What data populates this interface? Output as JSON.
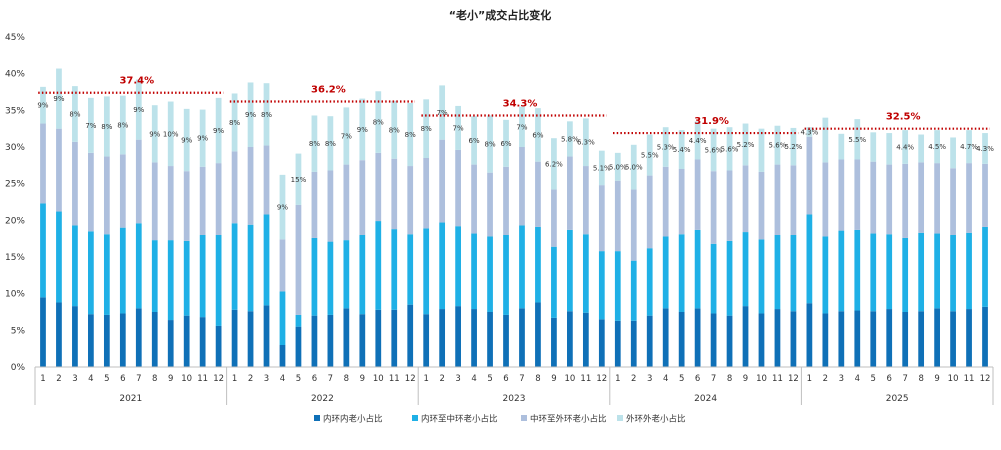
{
  "chart_data": {
    "type": "bar",
    "stacked": true,
    "title": "“老小”成交占比变化",
    "ylim": [
      0,
      45
    ],
    "yticks": [
      0,
      5,
      10,
      15,
      20,
      25,
      30,
      35,
      40,
      45
    ],
    "ytick_labels": [
      "0%",
      "5%",
      "10%",
      "15%",
      "20%",
      "25%",
      "30%",
      "35%",
      "40%",
      "45%"
    ],
    "years": [
      "2021",
      "2022",
      "2023",
      "2024",
      "2025"
    ],
    "month_labels": [
      "1",
      "2",
      "3",
      "4",
      "5",
      "6",
      "7",
      "8",
      "9",
      "10",
      "11",
      "12"
    ],
    "colors": [
      "#0F70B7",
      "#1FB0E6",
      "#ADBFDD",
      "#BCE2EA"
    ],
    "series": [
      {
        "name": "内环内老小占比",
        "values": [
          9.5,
          8.8,
          8.3,
          7.2,
          7.1,
          7.3,
          8.0,
          7.5,
          6.4,
          7.0,
          6.8,
          5.6,
          7.8,
          7.6,
          8.4,
          3.0,
          5.5,
          7.0,
          7.1,
          8.0,
          7.2,
          7.8,
          7.8,
          8.5,
          7.2,
          7.9,
          8.3,
          7.9,
          7.5,
          7.1,
          8.0,
          8.8,
          6.7,
          7.6,
          7.4,
          6.5,
          6.3,
          6.3,
          7.0,
          8.0,
          7.5,
          8.0,
          7.3,
          7.0,
          8.3,
          7.3,
          7.9,
          7.6,
          8.7,
          7.3,
          7.6,
          7.7,
          7.6,
          7.9,
          7.5,
          7.6,
          8.0,
          7.6,
          7.9,
          8.2
        ]
      },
      {
        "name": "内环至中环老小占比",
        "values": [
          12.8,
          12.4,
          11.0,
          11.3,
          11.0,
          11.7,
          11.6,
          9.8,
          10.9,
          10.2,
          11.2,
          12.4,
          11.8,
          11.8,
          12.4,
          7.3,
          1.6,
          10.6,
          10.0,
          9.3,
          10.8,
          12.1,
          11.0,
          9.6,
          11.7,
          11.8,
          10.9,
          10.3,
          10.3,
          10.9,
          11.3,
          10.3,
          9.7,
          11.1,
          10.7,
          9.3,
          9.5,
          8.2,
          9.2,
          9.8,
          10.6,
          10.7,
          9.5,
          10.2,
          10.1,
          10.1,
          10.1,
          10.4,
          12.1,
          10.5,
          11.0,
          11.0,
          10.6,
          10.2,
          10.1,
          10.7,
          10.2,
          10.4,
          10.4,
          10.9
        ]
      },
      {
        "name": "中环至外环老小占比",
        "values": [
          10.9,
          11.3,
          11.4,
          10.7,
          10.6,
          10.0,
          11.4,
          10.6,
          10.1,
          9.5,
          9.3,
          9.8,
          9.8,
          10.6,
          9.4,
          7.1,
          15.0,
          9.0,
          9.7,
          10.3,
          10.2,
          9.3,
          9.6,
          9.3,
          9.6,
          11.3,
          10.4,
          9.4,
          8.7,
          9.3,
          10.7,
          8.9,
          7.8,
          10.0,
          9.3,
          9.0,
          9.6,
          9.7,
          9.9,
          9.5,
          8.9,
          9.6,
          9.9,
          9.6,
          9.1,
          9.2,
          9.6,
          9.5,
          10.6,
          10.1,
          9.7,
          9.6,
          9.8,
          9.5,
          10.1,
          9.6,
          9.6,
          9.1,
          9.5,
          8.6
        ]
      },
      {
        "name": "外环外老小占比",
        "values": [
          5.0,
          8.2,
          7.6,
          7.5,
          8.2,
          8.0,
          8.2,
          7.8,
          8.8,
          8.5,
          7.8,
          8.9,
          7.9,
          8.8,
          8.5,
          8.8,
          7.0,
          7.7,
          7.4,
          7.8,
          8.4,
          8.4,
          7.9,
          8.6,
          8.0,
          7.4,
          6.0,
          6.6,
          7.8,
          6.4,
          5.5,
          7.3,
          7.0,
          4.8,
          6.5,
          4.7,
          3.8,
          6.1,
          5.6,
          5.4,
          5.3,
          5.2,
          5.8,
          5.9,
          5.7,
          5.9,
          5.3,
          5.1,
          1.3,
          6.1,
          3.5,
          5.5,
          4.0,
          4.3,
          4.6,
          3.8,
          4.5,
          4.2,
          4.5,
          4.2
        ]
      }
    ],
    "data_labels": [
      "9%",
      "9%",
      "8%",
      "7%",
      "8%",
      "8%",
      "9%",
      "9%",
      "10%",
      "9%",
      "9%",
      "9%",
      "8%",
      "9%",
      "8%",
      "9%",
      "15%",
      "8%",
      "8%",
      "7%",
      "9%",
      "8%",
      "8%",
      "8%",
      "8%",
      "7%",
      "7%",
      "6%",
      "8%",
      "6%",
      "7%",
      "6%",
      "6.2%",
      "5.8%",
      "6.3%",
      "5.1%",
      "5.0%",
      "5.0%",
      "5.5%",
      "5.3%",
      "5.4%",
      "4.4%",
      "5.6%",
      "5.6%",
      "5.2%",
      "",
      "5.6%",
      "5.2%",
      "4.3%",
      "",
      "",
      "5.5%",
      "",
      "",
      "4.4%",
      "",
      "4.5%",
      "",
      "4.7%",
      "4.3%"
    ],
    "averages": [
      {
        "year": "2021",
        "value": 37.4,
        "label": "37.4%"
      },
      {
        "year": "2022",
        "value": 36.2,
        "label": "36.2%"
      },
      {
        "year": "2023",
        "value": 34.3,
        "label": "34.3%"
      },
      {
        "year": "2024",
        "value": 31.9,
        "label": "31.9%"
      },
      {
        "year": "2025",
        "value": 32.5,
        "label": "32.5%"
      }
    ],
    "legend_position": "bottom"
  }
}
